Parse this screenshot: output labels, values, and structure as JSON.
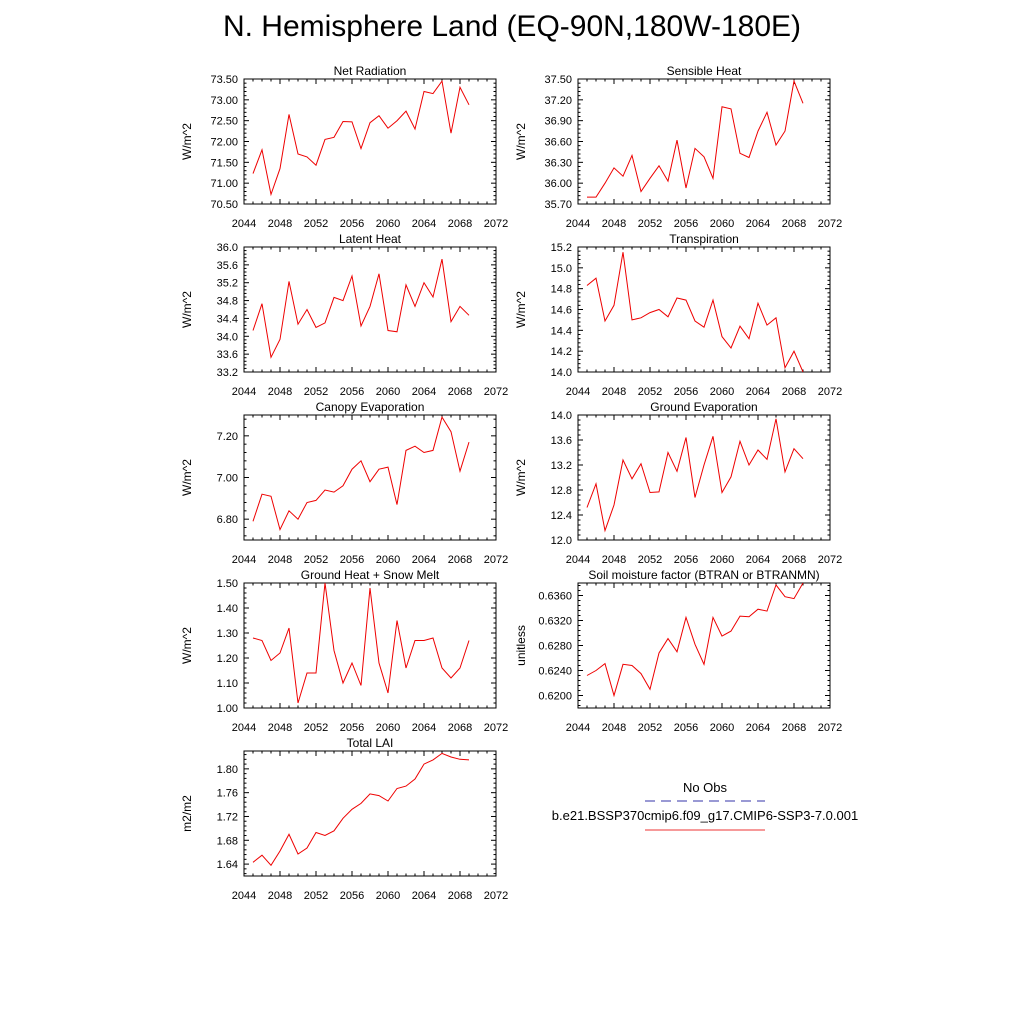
{
  "page": {
    "title": "N. Hemisphere Land (EQ-90N,180W-180E)"
  },
  "legend": {
    "entries": [
      {
        "label": "No Obs",
        "color": "#3333aa",
        "dash": "dashed"
      },
      {
        "label": "b.e21.BSSP370cmip6.f09_g17.CMIP6-SSP3-7.0.001",
        "color": "#ee3333",
        "dash": "solid"
      }
    ]
  },
  "chart_data": [
    {
      "type": "line",
      "title": "Net Radiation",
      "ylabel": "W/m^2",
      "xlim": [
        2044,
        2072
      ],
      "ylim": [
        70.5,
        73.5
      ],
      "xticks": [
        2044,
        2048,
        2052,
        2056,
        2060,
        2064,
        2068,
        2072
      ],
      "xtick_labels": [
        "2044",
        "2048",
        "2052",
        "2056",
        "2060",
        "2064",
        "2068",
        "2072"
      ],
      "yticks": [
        70.5,
        71.0,
        71.5,
        72.0,
        72.5,
        73.0,
        73.5
      ],
      "ytick_labels": [
        "70.50",
        "71.00",
        "71.50",
        "72.00",
        "72.50",
        "73.00",
        "73.50"
      ],
      "series": [
        {
          "color": "#ee0000",
          "x": [
            2045,
            2046,
            2047,
            2048,
            2049,
            2050,
            2051,
            2052,
            2053,
            2054,
            2055,
            2056,
            2057,
            2058,
            2059,
            2060,
            2061,
            2062,
            2063,
            2064,
            2065,
            2066,
            2067,
            2068,
            2069
          ],
          "y": [
            71.23,
            71.8,
            70.73,
            71.35,
            72.65,
            71.7,
            71.63,
            71.43,
            72.05,
            72.1,
            72.48,
            72.47,
            71.83,
            72.45,
            72.62,
            72.32,
            72.5,
            72.73,
            72.3,
            73.2,
            73.15,
            73.45,
            72.2,
            73.3,
            72.88
          ]
        }
      ]
    },
    {
      "type": "line",
      "title": "Sensible Heat",
      "ylabel": "W/m^2",
      "xlim": [
        2044,
        2072
      ],
      "ylim": [
        35.7,
        37.5
      ],
      "xticks": [
        2044,
        2048,
        2052,
        2056,
        2060,
        2064,
        2068,
        2072
      ],
      "xtick_labels": [
        "2044",
        "2048",
        "2052",
        "2056",
        "2060",
        "2064",
        "2068",
        "2072"
      ],
      "yticks": [
        35.7,
        36.0,
        36.3,
        36.6,
        36.9,
        37.2,
        37.5
      ],
      "ytick_labels": [
        "35.70",
        "36.00",
        "36.30",
        "36.60",
        "36.90",
        "37.20",
        "37.50"
      ],
      "series": [
        {
          "color": "#ee0000",
          "x": [
            2045,
            2046,
            2047,
            2048,
            2049,
            2050,
            2051,
            2052,
            2053,
            2054,
            2055,
            2056,
            2057,
            2058,
            2059,
            2060,
            2061,
            2062,
            2063,
            2064,
            2065,
            2066,
            2067,
            2068,
            2069
          ],
          "y": [
            35.8,
            35.8,
            36.0,
            36.22,
            36.1,
            36.4,
            35.88,
            36.07,
            36.25,
            36.03,
            36.62,
            35.93,
            36.5,
            36.38,
            36.07,
            37.1,
            37.07,
            36.43,
            36.37,
            36.75,
            37.02,
            36.55,
            36.75,
            37.47,
            37.15
          ]
        }
      ]
    },
    {
      "type": "line",
      "title": "Latent Heat",
      "ylabel": "W/m^2",
      "xlim": [
        2044,
        2072
      ],
      "ylim": [
        33.2,
        36.0
      ],
      "xticks": [
        2044,
        2048,
        2052,
        2056,
        2060,
        2064,
        2068,
        2072
      ],
      "xtick_labels": [
        "2044",
        "2048",
        "2052",
        "2056",
        "2060",
        "2064",
        "2068",
        "2072"
      ],
      "yticks": [
        33.2,
        33.6,
        34.0,
        34.4,
        34.8,
        35.2,
        35.6,
        36.0
      ],
      "ytick_labels": [
        "33.2",
        "33.6",
        "34.0",
        "34.4",
        "34.8",
        "35.2",
        "35.6",
        "36.0"
      ],
      "series": [
        {
          "color": "#ee0000",
          "x": [
            2045,
            2046,
            2047,
            2048,
            2049,
            2050,
            2051,
            2052,
            2053,
            2054,
            2055,
            2056,
            2057,
            2058,
            2059,
            2060,
            2061,
            2062,
            2063,
            2064,
            2065,
            2066,
            2067,
            2068,
            2069
          ],
          "y": [
            34.13,
            34.73,
            33.53,
            33.93,
            35.23,
            34.27,
            34.6,
            34.2,
            34.3,
            34.87,
            34.8,
            35.35,
            34.23,
            34.67,
            35.4,
            34.13,
            34.1,
            35.15,
            34.67,
            35.2,
            34.88,
            35.73,
            34.33,
            34.67,
            34.47
          ]
        }
      ]
    },
    {
      "type": "line",
      "title": "Transpiration",
      "ylabel": "W/m^2",
      "xlim": [
        2044,
        2072
      ],
      "ylim": [
        14.0,
        15.2
      ],
      "xticks": [
        2044,
        2048,
        2052,
        2056,
        2060,
        2064,
        2068,
        2072
      ],
      "xtick_labels": [
        "2044",
        "2048",
        "2052",
        "2056",
        "2060",
        "2064",
        "2068",
        "2072"
      ],
      "yticks": [
        14.0,
        14.2,
        14.4,
        14.6,
        14.8,
        15.0,
        15.2
      ],
      "ytick_labels": [
        "14.0",
        "14.2",
        "14.4",
        "14.6",
        "14.8",
        "15.0",
        "15.2"
      ],
      "series": [
        {
          "color": "#ee0000",
          "x": [
            2045,
            2046,
            2047,
            2048,
            2049,
            2050,
            2051,
            2052,
            2053,
            2054,
            2055,
            2056,
            2057,
            2058,
            2059,
            2060,
            2061,
            2062,
            2063,
            2064,
            2065,
            2066,
            2067,
            2068,
            2069
          ],
          "y": [
            14.83,
            14.9,
            14.49,
            14.64,
            15.15,
            14.5,
            14.52,
            14.57,
            14.6,
            14.53,
            14.71,
            14.69,
            14.49,
            14.43,
            14.69,
            14.34,
            14.23,
            14.44,
            14.32,
            14.66,
            14.45,
            14.52,
            14.04,
            14.2,
            14.0
          ]
        }
      ]
    },
    {
      "type": "line",
      "title": "Canopy Evaporation",
      "ylabel": "W/m^2",
      "xlim": [
        2044,
        2072
      ],
      "ylim": [
        6.7,
        7.3
      ],
      "xticks": [
        2044,
        2048,
        2052,
        2056,
        2060,
        2064,
        2068,
        2072
      ],
      "xtick_labels": [
        "2044",
        "2048",
        "2052",
        "2056",
        "2060",
        "2064",
        "2068",
        "2072"
      ],
      "yticks": [
        6.8,
        7.0,
        7.2
      ],
      "ytick_labels": [
        "6.80",
        "7.00",
        "7.20"
      ],
      "series": [
        {
          "color": "#ee0000",
          "x": [
            2045,
            2046,
            2047,
            2048,
            2049,
            2050,
            2051,
            2052,
            2053,
            2054,
            2055,
            2056,
            2057,
            2058,
            2059,
            2060,
            2061,
            2062,
            2063,
            2064,
            2065,
            2066,
            2067,
            2068,
            2069
          ],
          "y": [
            6.79,
            6.92,
            6.91,
            6.75,
            6.84,
            6.8,
            6.88,
            6.89,
            6.94,
            6.93,
            6.96,
            7.04,
            7.08,
            6.98,
            7.04,
            7.05,
            6.87,
            7.13,
            7.15,
            7.12,
            7.13,
            7.29,
            7.22,
            7.03,
            7.17
          ]
        }
      ]
    },
    {
      "type": "line",
      "title": "Ground Evaporation",
      "ylabel": "W/m^2",
      "xlim": [
        2044,
        2072
      ],
      "ylim": [
        12.0,
        14.0
      ],
      "xticks": [
        2044,
        2048,
        2052,
        2056,
        2060,
        2064,
        2068,
        2072
      ],
      "xtick_labels": [
        "2044",
        "2048",
        "2052",
        "2056",
        "2060",
        "2064",
        "2068",
        "2072"
      ],
      "yticks": [
        12.0,
        12.4,
        12.8,
        13.2,
        13.6,
        14.0
      ],
      "ytick_labels": [
        "12.0",
        "12.4",
        "12.8",
        "13.2",
        "13.6",
        "14.0"
      ],
      "series": [
        {
          "color": "#ee0000",
          "x": [
            2045,
            2046,
            2047,
            2048,
            2049,
            2050,
            2051,
            2052,
            2053,
            2054,
            2055,
            2056,
            2057,
            2058,
            2059,
            2060,
            2061,
            2062,
            2063,
            2064,
            2065,
            2066,
            2067,
            2068,
            2069
          ],
          "y": [
            12.52,
            12.9,
            12.15,
            12.56,
            13.28,
            12.98,
            13.22,
            12.76,
            12.77,
            13.4,
            13.1,
            13.64,
            12.68,
            13.2,
            13.66,
            12.76,
            13.01,
            13.58,
            13.2,
            13.44,
            13.29,
            13.94,
            13.09,
            13.46,
            13.3
          ]
        }
      ]
    },
    {
      "type": "line",
      "title": "Ground Heat + Snow Melt",
      "ylabel": "W/m^2",
      "xlim": [
        2044,
        2072
      ],
      "ylim": [
        1.0,
        1.5
      ],
      "xticks": [
        2044,
        2048,
        2052,
        2056,
        2060,
        2064,
        2068,
        2072
      ],
      "xtick_labels": [
        "2044",
        "2048",
        "2052",
        "2056",
        "2060",
        "2064",
        "2068",
        "2072"
      ],
      "yticks": [
        1.0,
        1.1,
        1.2,
        1.3,
        1.4,
        1.5
      ],
      "ytick_labels": [
        "1.00",
        "1.10",
        "1.20",
        "1.30",
        "1.40",
        "1.50"
      ],
      "series": [
        {
          "color": "#ee0000",
          "x": [
            2045,
            2046,
            2047,
            2048,
            2049,
            2050,
            2051,
            2052,
            2053,
            2054,
            2055,
            2056,
            2057,
            2058,
            2059,
            2060,
            2061,
            2062,
            2063,
            2064,
            2065,
            2066,
            2067,
            2068,
            2069
          ],
          "y": [
            1.28,
            1.27,
            1.19,
            1.22,
            1.32,
            1.02,
            1.14,
            1.14,
            1.5,
            1.23,
            1.1,
            1.18,
            1.09,
            1.48,
            1.18,
            1.06,
            1.35,
            1.16,
            1.27,
            1.27,
            1.28,
            1.16,
            1.12,
            1.16,
            1.27
          ]
        }
      ]
    },
    {
      "type": "line",
      "title": "Soil moisture factor (BTRAN or BTRANMN)",
      "ylabel": "unitless",
      "xlim": [
        2044,
        2072
      ],
      "ylim": [
        0.618,
        0.638
      ],
      "xticks": [
        2044,
        2048,
        2052,
        2056,
        2060,
        2064,
        2068,
        2072
      ],
      "xtick_labels": [
        "2044",
        "2048",
        "2052",
        "2056",
        "2060",
        "2064",
        "2068",
        "2072"
      ],
      "yticks": [
        0.62,
        0.624,
        0.628,
        0.632,
        0.636
      ],
      "ytick_labels": [
        "0.6200",
        "0.6240",
        "0.6280",
        "0.6320",
        "0.6360"
      ],
      "series": [
        {
          "color": "#ee0000",
          "x": [
            2045,
            2046,
            2047,
            2048,
            2049,
            2050,
            2051,
            2052,
            2053,
            2054,
            2055,
            2056,
            2057,
            2058,
            2059,
            2060,
            2061,
            2062,
            2063,
            2064,
            2065,
            2066,
            2067,
            2068,
            2069
          ],
          "y": [
            0.6232,
            0.624,
            0.6251,
            0.62,
            0.625,
            0.6248,
            0.6235,
            0.621,
            0.6268,
            0.6291,
            0.627,
            0.6325,
            0.6282,
            0.625,
            0.6325,
            0.6295,
            0.6303,
            0.6327,
            0.6326,
            0.6338,
            0.6335,
            0.6377,
            0.6358,
            0.6355,
            0.638
          ]
        }
      ]
    },
    {
      "type": "line",
      "title": "Total LAI",
      "ylabel": "m2/m2",
      "xlim": [
        2044,
        2072
      ],
      "ylim": [
        1.62,
        1.83
      ],
      "xticks": [
        2044,
        2048,
        2052,
        2056,
        2060,
        2064,
        2068,
        2072
      ],
      "xtick_labels": [
        "2044",
        "2048",
        "2052",
        "2056",
        "2060",
        "2064",
        "2068",
        "2072"
      ],
      "yticks": [
        1.64,
        1.68,
        1.72,
        1.76,
        1.8
      ],
      "ytick_labels": [
        "1.64",
        "1.68",
        "1.72",
        "1.76",
        "1.80"
      ],
      "series": [
        {
          "color": "#ee0000",
          "x": [
            2045,
            2046,
            2047,
            2048,
            2049,
            2050,
            2051,
            2052,
            2053,
            2054,
            2055,
            2056,
            2057,
            2058,
            2059,
            2060,
            2061,
            2062,
            2063,
            2064,
            2065,
            2066,
            2067,
            2068,
            2069
          ],
          "y": [
            1.643,
            1.655,
            1.638,
            1.662,
            1.69,
            1.657,
            1.667,
            1.693,
            1.688,
            1.696,
            1.717,
            1.732,
            1.742,
            1.758,
            1.755,
            1.746,
            1.767,
            1.771,
            1.783,
            1.808,
            1.815,
            1.826,
            1.82,
            1.816,
            1.815
          ]
        }
      ]
    }
  ]
}
